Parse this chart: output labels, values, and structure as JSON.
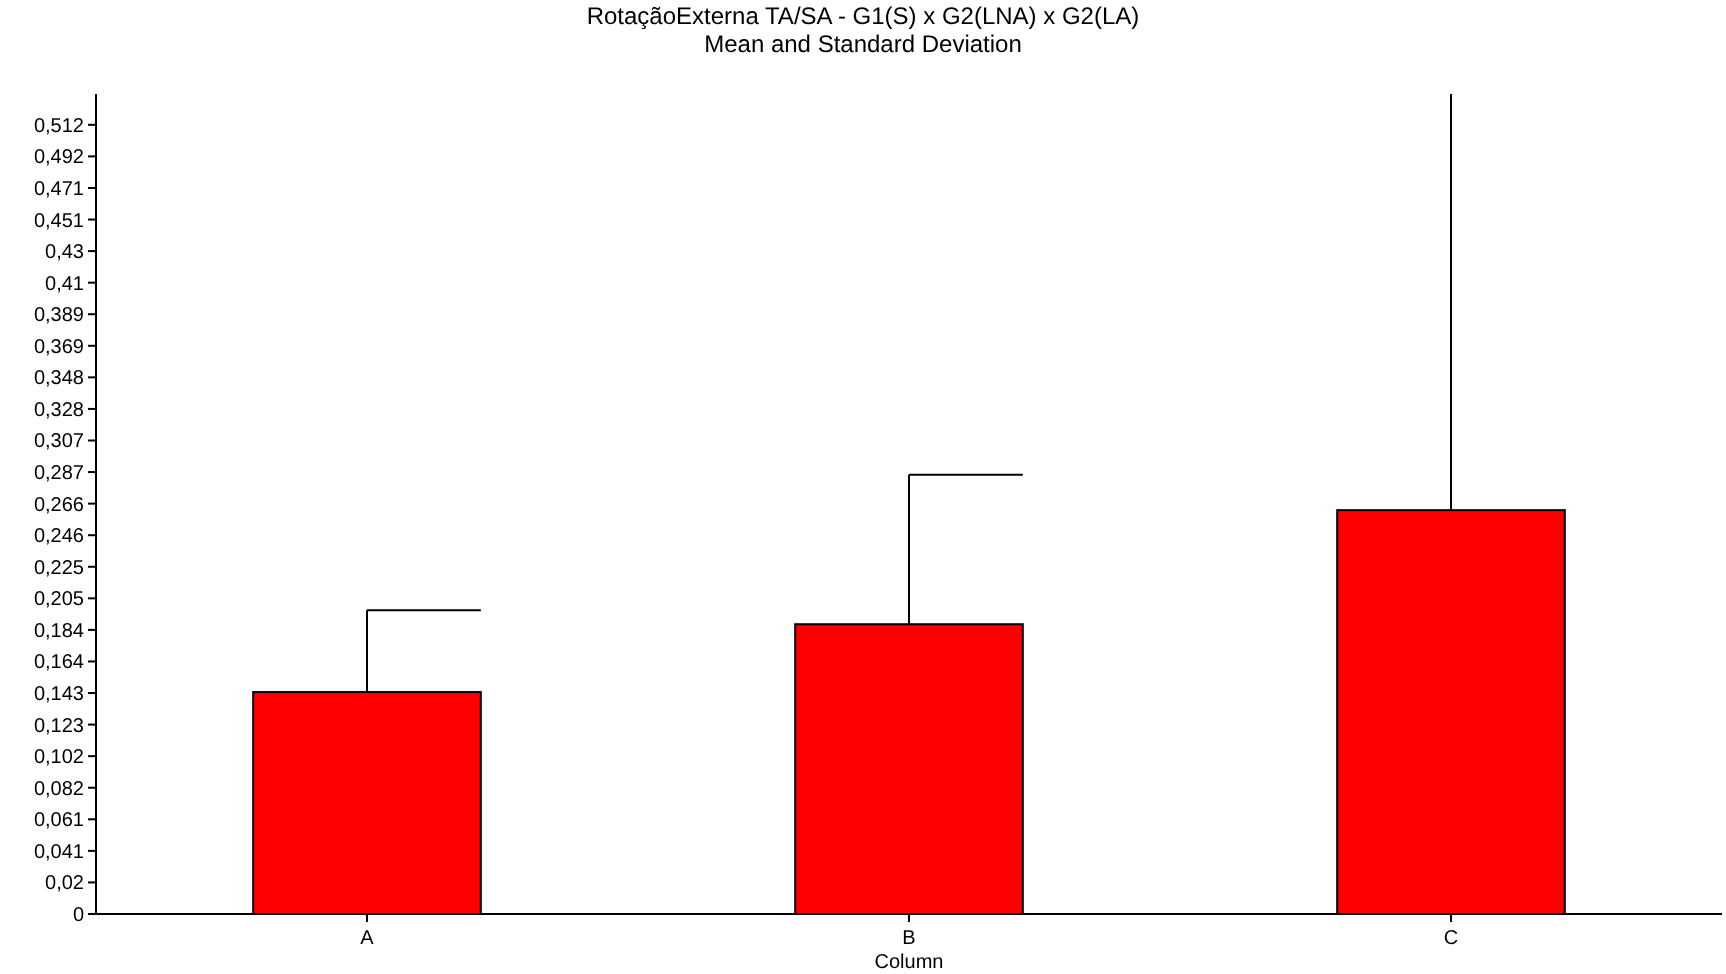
{
  "chart_data": {
    "type": "bar",
    "title": "RotaçãoExterna TA/SA - G1(S) x G2(LNA) x G2(LA)",
    "subtitle": "Mean and Standard Deviation",
    "xlabel": "Column",
    "categories": [
      "A",
      "B",
      "C"
    ],
    "series": [
      {
        "color": "#ff0000",
        "values": [
          0.144,
          0.188,
          0.262
        ],
        "errors": [
          0.053,
          0.097,
          0.27
        ]
      }
    ],
    "ylim": [
      0,
      0.532
    ],
    "yticks": [
      0,
      {
        "value": 0.02048,
        "label": "0,02"
      },
      {
        "value": 0.04096,
        "label": "0,041"
      },
      {
        "value": 0.06144,
        "label": "0,061"
      },
      {
        "value": 0.08192,
        "label": "0,082"
      },
      {
        "value": 0.1024,
        "label": "0,102"
      },
      {
        "value": 0.12288,
        "label": "0,123"
      },
      {
        "value": 0.14336,
        "label": "0,143"
      },
      {
        "value": 0.16384,
        "label": "0,164"
      },
      {
        "value": 0.18432,
        "label": "0,184"
      },
      {
        "value": 0.2048,
        "label": "0,205"
      },
      {
        "value": 0.22528,
        "label": "0,225"
      },
      {
        "value": 0.24576,
        "label": "0,246"
      },
      {
        "value": 0.26624,
        "label": "0,266"
      },
      {
        "value": 0.28672,
        "label": "0,287"
      },
      {
        "value": 0.3072,
        "label": "0,307"
      },
      {
        "value": 0.32768,
        "label": "0,328"
      },
      {
        "value": 0.34816,
        "label": "0,348"
      },
      {
        "value": 0.36864,
        "label": "0,369"
      },
      {
        "value": 0.38912,
        "label": "0,389"
      },
      {
        "value": 0.4096,
        "label": "0,41"
      },
      {
        "value": 0.43008,
        "label": "0,43"
      },
      {
        "value": 0.45056,
        "label": "0,451"
      },
      {
        "value": 0.47104,
        "label": "0,471"
      },
      {
        "value": 0.49152,
        "label": "0,492"
      },
      {
        "value": 0.512,
        "label": "0,512"
      }
    ],
    "grid": false
  }
}
